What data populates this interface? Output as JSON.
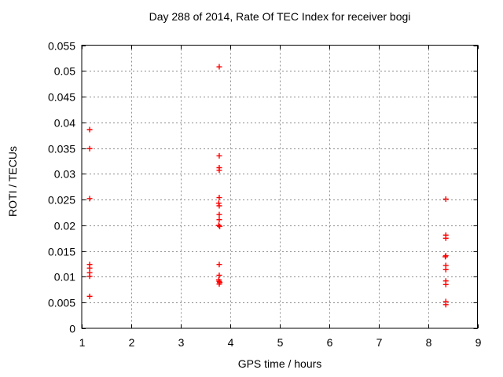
{
  "chart_data": {
    "type": "scatter",
    "title": "Day 288 of 2014, Rate Of TEC Index for receiver bogi",
    "xlabel": "GPS time / hours",
    "ylabel": "ROTI / TECUs",
    "xlim": [
      1,
      9
    ],
    "ylim": [
      0,
      0.055
    ],
    "xticks": [
      1,
      2,
      3,
      4,
      5,
      6,
      7,
      8,
      9
    ],
    "xtick_labels": [
      "1",
      "2",
      "3",
      "4",
      "5",
      "6",
      "7",
      "8",
      "9"
    ],
    "yticks": [
      0,
      0.005,
      0.01,
      0.015,
      0.02,
      0.025,
      0.03,
      0.035,
      0.04,
      0.045,
      0.05,
      0.055
    ],
    "ytick_labels": [
      "0",
      "0.005",
      "0.01",
      "0.015",
      "0.02",
      "0.025",
      "0.03",
      "0.035",
      "0.04",
      "0.045",
      "0.05",
      "0.055"
    ],
    "grid": true,
    "legend_position": "none",
    "marker": {
      "shape": "plus",
      "color": "#ff0000",
      "size": 7
    },
    "colors": {
      "background": "#ffffff",
      "border": "#000000",
      "gridline": "#8c8c8c",
      "marker": "#ff0000",
      "text": "#000000"
    },
    "series": [
      {
        "name": "ROTI",
        "points": [
          [
            1.16,
            0.0386
          ],
          [
            1.16,
            0.0349
          ],
          [
            1.16,
            0.0252
          ],
          [
            1.16,
            0.0124
          ],
          [
            1.16,
            0.0117
          ],
          [
            1.16,
            0.0108
          ],
          [
            1.16,
            0.0101
          ],
          [
            1.16,
            0.0062
          ],
          [
            3.78,
            0.0508
          ],
          [
            3.78,
            0.0335
          ],
          [
            3.78,
            0.0312
          ],
          [
            3.78,
            0.0307
          ],
          [
            3.78,
            0.0254
          ],
          [
            3.77,
            0.0243
          ],
          [
            3.78,
            0.0238
          ],
          [
            3.78,
            0.0221
          ],
          [
            3.78,
            0.0211
          ],
          [
            3.77,
            0.02
          ],
          [
            3.79,
            0.0198
          ],
          [
            3.78,
            0.0124
          ],
          [
            3.78,
            0.0103
          ],
          [
            3.77,
            0.0094
          ],
          [
            3.78,
            0.0091
          ],
          [
            3.79,
            0.0089
          ],
          [
            3.78,
            0.0086
          ],
          [
            8.36,
            0.0251
          ],
          [
            8.36,
            0.0181
          ],
          [
            8.36,
            0.0175
          ],
          [
            8.36,
            0.0141
          ],
          [
            8.35,
            0.0139
          ],
          [
            8.36,
            0.0122
          ],
          [
            8.36,
            0.0114
          ],
          [
            8.36,
            0.0092
          ],
          [
            8.36,
            0.0085
          ],
          [
            8.36,
            0.0052
          ],
          [
            8.36,
            0.0046
          ]
        ]
      }
    ]
  }
}
